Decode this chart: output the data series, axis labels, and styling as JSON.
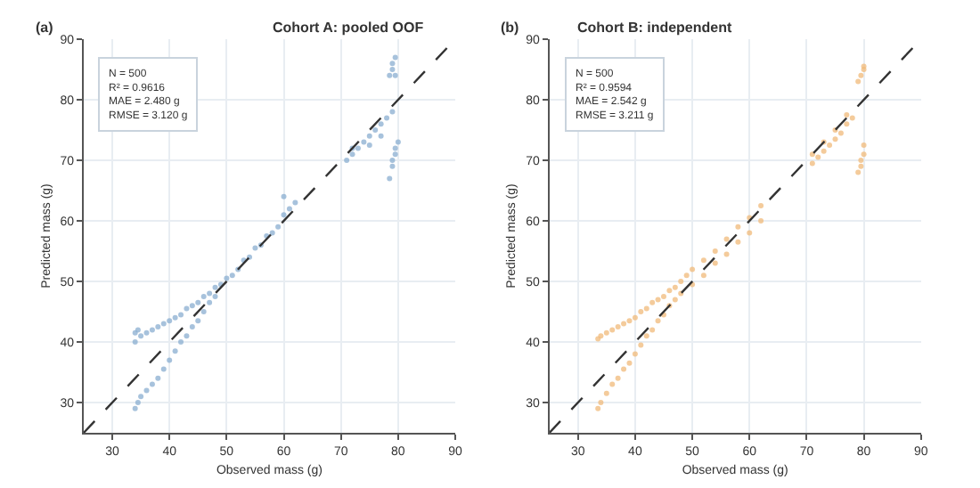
{
  "chart_data": [
    {
      "type": "scatter",
      "title": "Cohort A: pooled OOF",
      "xlabel": "Observed mass (g)",
      "ylabel": "Predicted mass (g)",
      "xlim": [
        25,
        90
      ],
      "ylim": [
        25,
        90
      ],
      "xticks": [
        30,
        40,
        50,
        60,
        70,
        80,
        90
      ],
      "yticks": [
        30,
        40,
        50,
        60,
        70,
        80,
        90
      ],
      "grid": true,
      "marker": "circle",
      "annotations": [
        "(a)",
        "N = 500\nR² = 0.9616\nMAE = 2.480 g\nRMSE = 3.120 g"
      ],
      "series": [
        {
          "color": "#8aaed0",
          "x": [
            34,
            34,
            34.5,
            35,
            36,
            37,
            38,
            39,
            40,
            41,
            42,
            43,
            44,
            45,
            46,
            47,
            48,
            34,
            34.5,
            35,
            36,
            37,
            38,
            39,
            40,
            41,
            42,
            43,
            44,
            45,
            46,
            47,
            48,
            49,
            50,
            51,
            52,
            53,
            54,
            55,
            56,
            57,
            58,
            59,
            60,
            61,
            62,
            60,
            71,
            72,
            72,
            73,
            74,
            75,
            76,
            77,
            78,
            79,
            75,
            77,
            78.5,
            79,
            79,
            79.5,
            79.5,
            78.5,
            79,
            79.5,
            79.5,
            80,
            79
          ],
          "values": [
            40,
            41.5,
            42,
            41,
            41.5,
            42,
            42.5,
            43,
            43.5,
            44,
            44.5,
            45.5,
            46,
            46.5,
            47.5,
            48,
            49,
            29,
            30,
            31,
            32,
            33,
            34,
            35.5,
            37,
            38.5,
            40,
            41,
            42.5,
            43.5,
            45,
            46.5,
            47.5,
            49.5,
            50.5,
            51,
            52,
            53.5,
            54,
            55.5,
            56,
            57.5,
            58,
            59,
            61,
            62,
            63,
            64,
            70,
            71,
            72,
            72,
            73,
            74,
            75,
            76,
            77,
            78,
            72.5,
            74,
            84,
            85,
            86,
            87,
            84,
            67,
            69,
            71,
            72,
            73,
            70
          ]
        },
        {
          "type": "line",
          "color": "#333333",
          "line_style": "dashed",
          "marker": "none",
          "x": [
            25,
            90
          ],
          "values": [
            25,
            90
          ]
        }
      ]
    },
    {
      "type": "scatter",
      "title": "Cohort B: independent",
      "xlabel": "Observed mass (g)",
      "ylabel": "Predicted mass (g)",
      "xlim": [
        25,
        90
      ],
      "ylim": [
        25,
        90
      ],
      "xticks": [
        30,
        40,
        50,
        60,
        70,
        80,
        90
      ],
      "yticks": [
        30,
        40,
        50,
        60,
        70,
        80,
        90
      ],
      "grid": true,
      "marker": "circle",
      "annotations": [
        "(b)",
        "N = 500\nR² = 0.9594\nMAE = 2.542 g\nRMSE = 3.211 g"
      ],
      "series": [
        {
          "color": "#f0b97a",
          "x": [
            33.5,
            34,
            35,
            36,
            37,
            38,
            39,
            40,
            41,
            42,
            43,
            44,
            45,
            46,
            47,
            48,
            49,
            50,
            52,
            54,
            56,
            58,
            60,
            62,
            33.5,
            34,
            35,
            36,
            37,
            38,
            39,
            40,
            41,
            42,
            43,
            44,
            45,
            46,
            47,
            48,
            50,
            52,
            54,
            56,
            58,
            60,
            62,
            71,
            72,
            73,
            74,
            75,
            76,
            77,
            78,
            71,
            73,
            75,
            77,
            79,
            79.5,
            80,
            80,
            79,
            79.5,
            80,
            80,
            79.5
          ],
          "values": [
            40.5,
            41,
            41.5,
            42,
            42.5,
            43,
            43.5,
            44,
            45,
            45.5,
            46.5,
            47,
            47.5,
            48.5,
            49,
            50,
            51,
            52,
            53.5,
            55,
            57,
            59,
            60.5,
            62.5,
            29,
            30,
            31.5,
            33,
            34,
            35.5,
            36.5,
            38,
            39.5,
            41,
            42,
            43.5,
            44.5,
            46,
            47,
            48,
            49.5,
            51,
            53,
            54.5,
            56.5,
            58,
            60,
            69.5,
            70.5,
            71.5,
            72.5,
            73.5,
            74.5,
            76,
            77,
            71,
            73,
            75,
            77.5,
            83,
            84,
            85,
            85.5,
            68,
            69,
            71,
            72.5,
            70
          ]
        },
        {
          "type": "line",
          "color": "#333333",
          "line_style": "dashed",
          "marker": "none",
          "x": [
            25,
            90
          ],
          "values": [
            25,
            90
          ]
        }
      ]
    }
  ]
}
